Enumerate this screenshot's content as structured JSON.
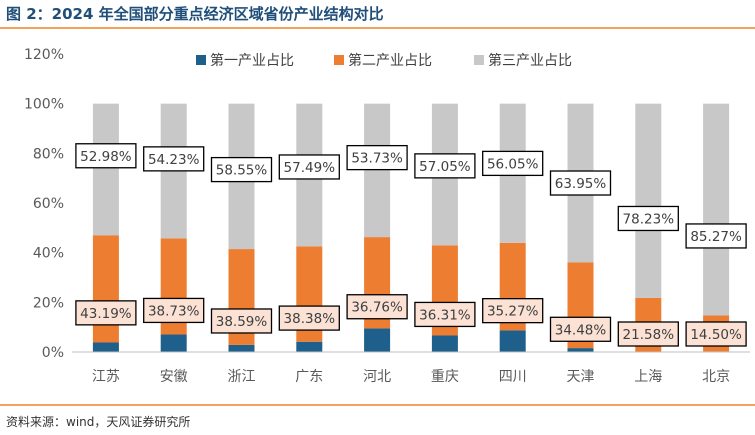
{
  "header": {
    "title": "图 2：2024 年全国部分重点经济区域省份产业结构对比"
  },
  "footer": {
    "source": "资料来源：wind，天风证券研究所"
  },
  "chart_data": {
    "type": "bar",
    "stacked": true,
    "categories": [
      "江苏",
      "安徽",
      "浙江",
      "广东",
      "河北",
      "重庆",
      "四川",
      "天津",
      "上海",
      "北京"
    ],
    "series": [
      {
        "name": "第一产业占比",
        "color": "#1f5f8b",
        "values": [
          3.83,
          7.04,
          2.86,
          4.13,
          9.51,
          6.64,
          8.68,
          1.57,
          0.19,
          0.23
        ]
      },
      {
        "name": "第二产业占比",
        "color": "#ed7d31",
        "values": [
          43.19,
          38.73,
          38.59,
          38.38,
          36.76,
          36.31,
          35.27,
          34.48,
          21.58,
          14.5
        ]
      },
      {
        "name": "第三产业占比",
        "color": "#c8c8c8",
        "values": [
          52.98,
          54.23,
          58.55,
          57.49,
          53.73,
          57.05,
          56.05,
          63.95,
          78.23,
          85.27
        ]
      }
    ],
    "secondary_labels": [
      "43.19%",
      "38.73%",
      "38.59%",
      "38.38%",
      "36.76%",
      "36.31%",
      "35.27%",
      "34.48%",
      "21.58%",
      "14.50%"
    ],
    "tertiary_labels": [
      "52.98%",
      "54.23%",
      "58.55%",
      "57.49%",
      "53.73%",
      "57.05%",
      "56.05%",
      "63.95%",
      "78.23%",
      "85.27%"
    ],
    "ylim": [
      0,
      120
    ],
    "yticks": [
      "0%",
      "20%",
      "40%",
      "60%",
      "80%",
      "100%",
      "120%"
    ],
    "legend": "top",
    "grid": false
  }
}
